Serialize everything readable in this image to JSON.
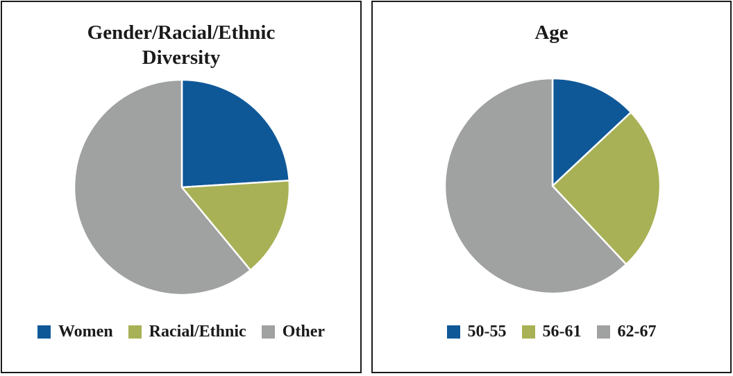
{
  "chart_data": [
    {
      "type": "pie",
      "title": "Gender/Racial/Ethnic Diversity",
      "categories": [
        "Women",
        "Racial/Ethnic",
        "Other"
      ],
      "values": [
        24,
        15,
        61
      ],
      "colors": [
        "#0f5898",
        "#a8b155",
        "#a0a1a1"
      ],
      "legend_position": "bottom"
    },
    {
      "type": "pie",
      "title": "Age",
      "categories": [
        "50-55",
        "56-61",
        "62-67"
      ],
      "values": [
        13,
        25,
        62
      ],
      "colors": [
        "#0f5898",
        "#a8b155",
        "#a0a1a1"
      ],
      "legend_position": "bottom"
    }
  ]
}
